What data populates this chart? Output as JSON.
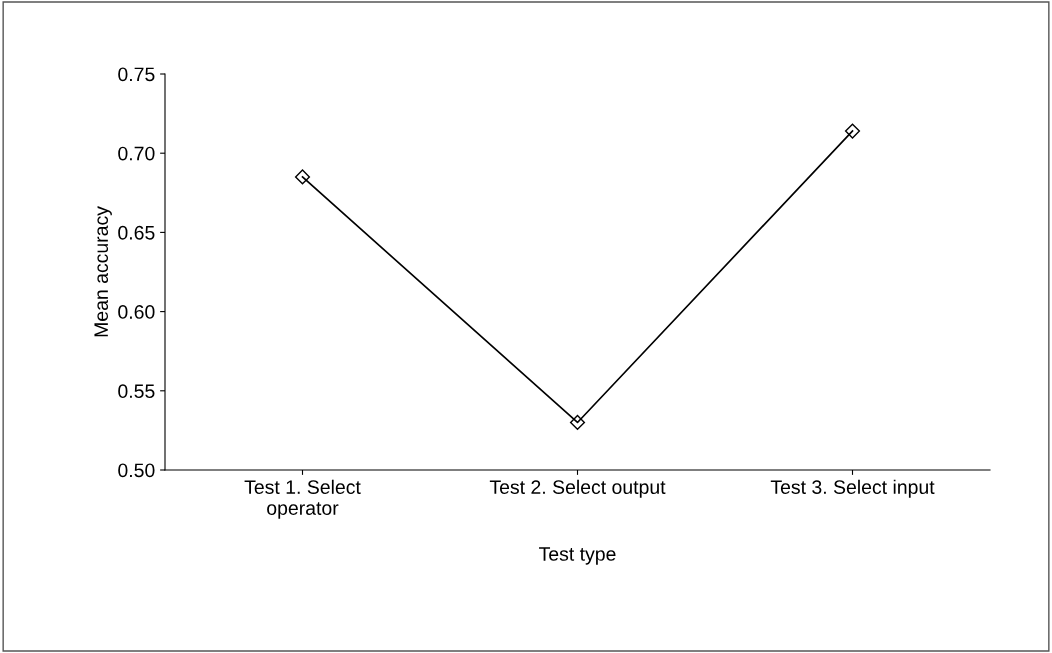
{
  "chart_data": {
    "type": "line",
    "xlabel": "Test type",
    "ylabel": "Mean accuracy",
    "categories": [
      "Test 1. Select\noperator",
      "Test 2. Select output",
      "Test 3. Select input"
    ],
    "series": [
      {
        "color": "#000000",
        "values": [
          0.685,
          0.53,
          0.714
        ]
      }
    ],
    "ylim": [
      0.5,
      0.75
    ],
    "yticks": [
      {
        "value": 0.5,
        "label": "0.50"
      },
      {
        "value": 0.55,
        "label": "0.55"
      },
      {
        "value": 0.6,
        "label": "0.60"
      },
      {
        "value": 0.65,
        "label": "0.65"
      },
      {
        "value": 0.7,
        "label": "0.70"
      },
      {
        "value": 0.75,
        "label": "0.75"
      }
    ],
    "grid": false,
    "legend": false,
    "marker": "diamond",
    "line_style": "solid"
  }
}
